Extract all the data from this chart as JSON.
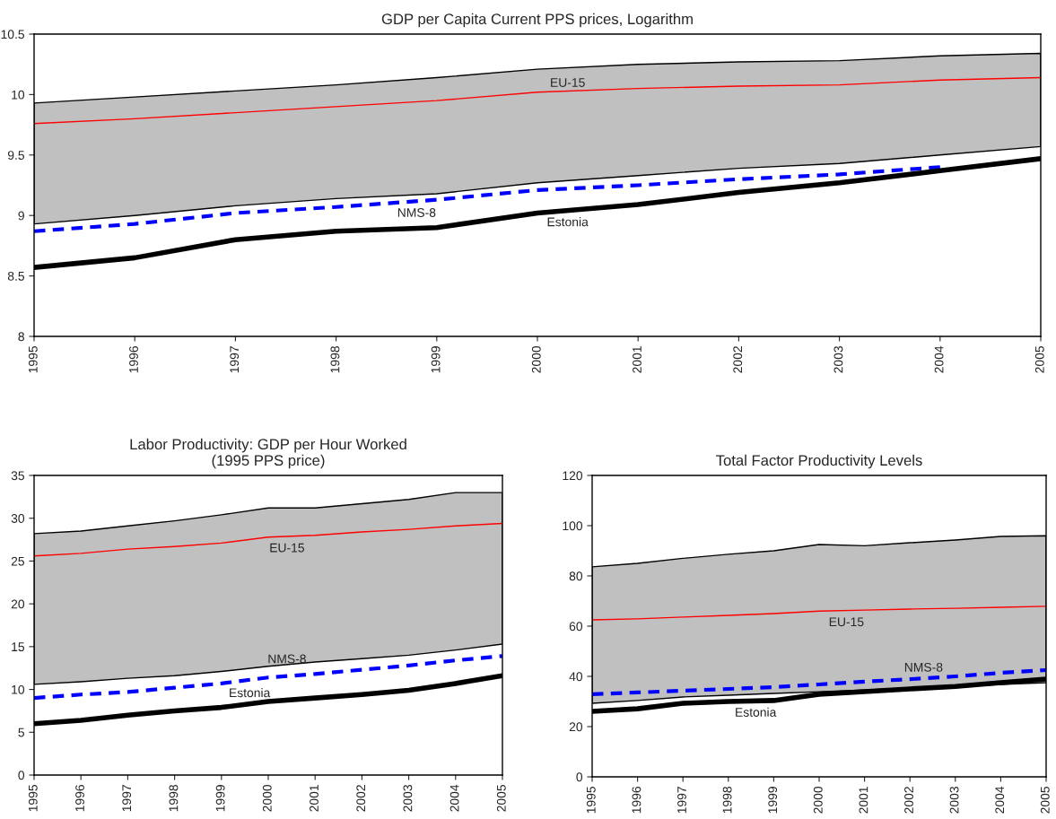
{
  "chart_data": [
    {
      "type": "line",
      "title": "GDP per Capita Current PPS prices, Logarithm",
      "categories": [
        "1995",
        "1996",
        "1997",
        "1998",
        "1999",
        "2000",
        "2001",
        "2002",
        "2003",
        "2004",
        "2005"
      ],
      "ylim": [
        8,
        10.5
      ],
      "yticks": [
        8,
        8.5,
        9,
        9.5,
        10,
        10.5
      ],
      "grid": false,
      "legend": false,
      "series": [
        {
          "name": "EU-15",
          "color": "#ff0000",
          "line_style": "solid",
          "values": [
            9.76,
            9.8,
            9.85,
            9.9,
            9.95,
            10.02,
            10.05,
            10.07,
            10.08,
            10.12,
            10.14
          ],
          "lower": [
            8.93,
            9.0,
            9.08,
            9.14,
            9.18,
            9.27,
            9.33,
            9.39,
            9.43,
            9.5,
            9.57
          ],
          "upper": [
            9.93,
            9.98,
            10.03,
            10.08,
            10.14,
            10.21,
            10.25,
            10.27,
            10.28,
            10.32,
            10.34
          ]
        },
        {
          "name": "NMS-8",
          "color": "#0000ff",
          "line_style": "dashed",
          "values": [
            8.87,
            8.93,
            9.02,
            9.07,
            9.13,
            9.21,
            9.25,
            9.3,
            9.34,
            9.4,
            null
          ]
        },
        {
          "name": "Estonia",
          "color": "#000000",
          "line_style": "solid",
          "values": [
            8.57,
            8.65,
            8.8,
            8.87,
            8.9,
            9.02,
            9.09,
            9.19,
            9.27,
            9.37,
            9.47
          ]
        }
      ]
    },
    {
      "type": "line",
      "title": "Labor Productivity: GDP per Hour Worked\n(1995 PPS price)",
      "categories": [
        "1995",
        "1996",
        "1997",
        "1998",
        "1999",
        "2000",
        "2001",
        "2002",
        "2003",
        "2004",
        "2005"
      ],
      "ylim": [
        0,
        35
      ],
      "yticks": [
        0,
        5,
        10,
        15,
        20,
        25,
        30,
        35
      ],
      "grid": false,
      "legend": false,
      "series": [
        {
          "name": "EU-15",
          "color": "#ff0000",
          "line_style": "solid",
          "values": [
            25.6,
            25.9,
            26.4,
            26.7,
            27.1,
            27.8,
            28.0,
            28.4,
            28.7,
            29.1,
            29.4
          ],
          "lower": [
            10.6,
            10.9,
            11.3,
            11.6,
            12.1,
            12.7,
            13.2,
            13.6,
            14.0,
            14.6,
            15.3
          ],
          "upper": [
            28.2,
            28.5,
            29.1,
            29.7,
            30.4,
            31.2,
            31.2,
            31.7,
            32.2,
            33.0,
            33.0
          ]
        },
        {
          "name": "NMS-8",
          "color": "#0000ff",
          "line_style": "dashed",
          "values": [
            9.0,
            9.4,
            9.7,
            10.2,
            10.7,
            11.4,
            11.8,
            12.3,
            12.8,
            13.4,
            13.9
          ]
        },
        {
          "name": "Estonia",
          "color": "#000000",
          "line_style": "solid",
          "values": [
            6.0,
            6.4,
            7.0,
            7.5,
            7.9,
            8.6,
            9.0,
            9.4,
            9.9,
            10.7,
            11.6
          ]
        }
      ]
    },
    {
      "type": "line",
      "title": "Total Factor Productivity Levels",
      "categories": [
        "1995",
        "1996",
        "1997",
        "1998",
        "1999",
        "2000",
        "2001",
        "2002",
        "2003",
        "2004",
        "2005"
      ],
      "ylim": [
        0,
        120
      ],
      "yticks": [
        0,
        20,
        40,
        60,
        80,
        100,
        120
      ],
      "grid": false,
      "legend": false,
      "series": [
        {
          "name": "EU-15",
          "color": "#ff0000",
          "line_style": "solid",
          "values": [
            62.5,
            62.9,
            63.6,
            64.3,
            65,
            66,
            66.4,
            66.8,
            67.1,
            67.5,
            67.9
          ],
          "lower": [
            29.3,
            30.4,
            31.8,
            32.5,
            33.2,
            33.9,
            34.6,
            35.4,
            36,
            36.8,
            37.5
          ],
          "upper": [
            83.6,
            85,
            87,
            88.6,
            90,
            92.5,
            92,
            93.2,
            94.3,
            95.7,
            96
          ]
        },
        {
          "name": "NMS-8",
          "color": "#0000ff",
          "line_style": "dashed",
          "values": [
            32.9,
            33.6,
            34.3,
            35,
            35.7,
            36.8,
            37.9,
            38.9,
            40,
            41.4,
            42.5
          ]
        },
        {
          "name": "Estonia",
          "color": "#000000",
          "line_style": "solid",
          "values": [
            26.1,
            27.1,
            29.3,
            30,
            30.4,
            32.9,
            33.9,
            35,
            36,
            37.5,
            38.9
          ]
        }
      ]
    }
  ]
}
